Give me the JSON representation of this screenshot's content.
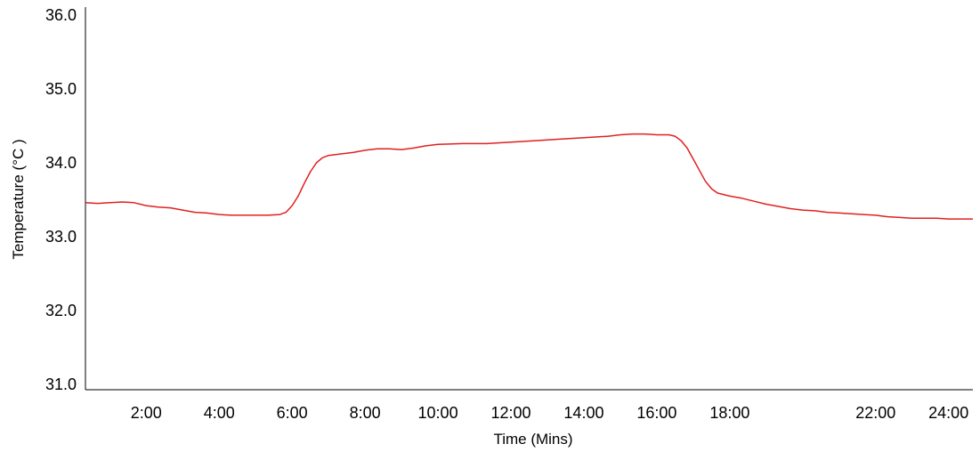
{
  "chart_data": {
    "type": "line",
    "title": "",
    "xlabel": "Time (Mins)",
    "ylabel": "Temperature (°C )",
    "ylim": [
      31.0,
      36.0
    ],
    "xlim": [
      "0:20",
      "24:40"
    ],
    "y_ticks": [
      "31.0",
      "32.0",
      "33.0",
      "34.0",
      "35.0",
      "36.0"
    ],
    "x_ticks": [
      "2:00",
      "4:00",
      "6:00",
      "8:00",
      "10:00",
      "12:00",
      "14:00",
      "16:00",
      "18:00",
      "22:00",
      "24:00"
    ],
    "grid": false,
    "legend": "none",
    "series": [
      {
        "color": "#e02020",
        "points": [
          [
            "0:20",
            33.46
          ],
          [
            "0:40",
            33.45
          ],
          [
            "1:00",
            33.46
          ],
          [
            "1:20",
            33.47
          ],
          [
            "1:40",
            33.46
          ],
          [
            "2:00",
            33.42
          ],
          [
            "2:20",
            33.4
          ],
          [
            "2:40",
            33.39
          ],
          [
            "3:00",
            33.36
          ],
          [
            "3:20",
            33.33
          ],
          [
            "3:40",
            33.32
          ],
          [
            "4:00",
            33.3
          ],
          [
            "4:20",
            33.29
          ],
          [
            "4:40",
            33.29
          ],
          [
            "5:00",
            33.29
          ],
          [
            "5:20",
            33.29
          ],
          [
            "5:40",
            33.3
          ],
          [
            "5:50",
            33.33
          ],
          [
            "6:00",
            33.42
          ],
          [
            "6:10",
            33.55
          ],
          [
            "6:20",
            33.72
          ],
          [
            "6:30",
            33.88
          ],
          [
            "6:40",
            34.0
          ],
          [
            "6:50",
            34.07
          ],
          [
            "7:00",
            34.1
          ],
          [
            "7:20",
            34.12
          ],
          [
            "7:40",
            34.14
          ],
          [
            "8:00",
            34.17
          ],
          [
            "8:20",
            34.19
          ],
          [
            "8:40",
            34.19
          ],
          [
            "9:00",
            34.18
          ],
          [
            "9:20",
            34.2
          ],
          [
            "9:40",
            34.23
          ],
          [
            "10:00",
            34.25
          ],
          [
            "10:40",
            34.26
          ],
          [
            "11:20",
            34.26
          ],
          [
            "12:00",
            34.28
          ],
          [
            "12:40",
            34.3
          ],
          [
            "13:20",
            34.32
          ],
          [
            "14:00",
            34.34
          ],
          [
            "14:40",
            34.36
          ],
          [
            "15:00",
            34.38
          ],
          [
            "15:20",
            34.39
          ],
          [
            "15:40",
            34.39
          ],
          [
            "16:00",
            34.38
          ],
          [
            "16:20",
            34.38
          ],
          [
            "16:30",
            34.36
          ],
          [
            "16:40",
            34.3
          ],
          [
            "16:50",
            34.2
          ],
          [
            "17:00",
            34.05
          ],
          [
            "17:10",
            33.9
          ],
          [
            "17:20",
            33.75
          ],
          [
            "17:30",
            33.65
          ],
          [
            "17:40",
            33.59
          ],
          [
            "18:00",
            33.55
          ],
          [
            "18:20",
            33.52
          ],
          [
            "18:40",
            33.48
          ],
          [
            "19:00",
            33.44
          ],
          [
            "19:20",
            33.41
          ],
          [
            "19:40",
            33.38
          ],
          [
            "20:00",
            33.36
          ],
          [
            "20:20",
            33.35
          ],
          [
            "20:40",
            33.33
          ],
          [
            "21:00",
            33.32
          ],
          [
            "21:20",
            33.31
          ],
          [
            "21:40",
            33.3
          ],
          [
            "22:00",
            33.29
          ],
          [
            "22:20",
            33.27
          ],
          [
            "22:40",
            33.26
          ],
          [
            "23:00",
            33.25
          ],
          [
            "23:20",
            33.25
          ],
          [
            "23:40",
            33.25
          ],
          [
            "24:00",
            33.24
          ],
          [
            "24:20",
            33.24
          ],
          [
            "24:40",
            33.24
          ]
        ]
      }
    ]
  }
}
